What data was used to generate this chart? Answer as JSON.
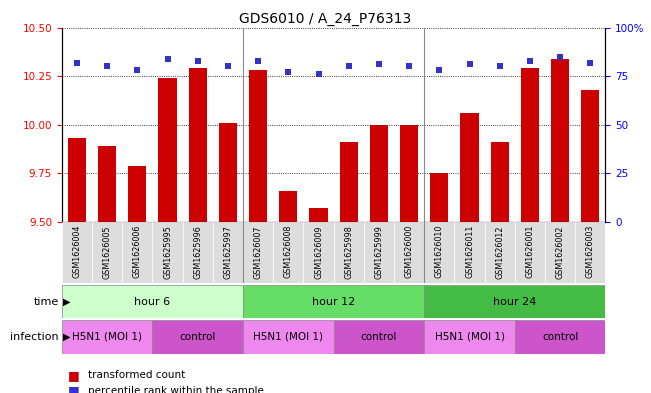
{
  "title": "GDS6010 / A_24_P76313",
  "samples": [
    "GSM1626004",
    "GSM1626005",
    "GSM1626006",
    "GSM1625995",
    "GSM1625996",
    "GSM1625997",
    "GSM1626007",
    "GSM1626008",
    "GSM1626009",
    "GSM1625998",
    "GSM1625999",
    "GSM1626000",
    "GSM1626010",
    "GSM1626011",
    "GSM1626012",
    "GSM1626001",
    "GSM1626002",
    "GSM1626003"
  ],
  "bar_values": [
    9.93,
    9.89,
    9.79,
    10.24,
    10.29,
    10.01,
    10.28,
    9.66,
    9.57,
    9.91,
    10.0,
    10.0,
    9.75,
    10.06,
    9.91,
    10.29,
    10.34,
    10.18
  ],
  "dot_values": [
    82,
    80,
    78,
    84,
    83,
    80,
    83,
    77,
    76,
    80,
    81,
    80,
    78,
    81,
    80,
    83,
    85,
    82
  ],
  "ylim_left": [
    9.5,
    10.5
  ],
  "ylim_right": [
    0,
    100
  ],
  "yticks_left": [
    9.5,
    9.75,
    10.0,
    10.25,
    10.5
  ],
  "yticks_right": [
    0,
    25,
    50,
    75,
    100
  ],
  "bar_color": "#cc0000",
  "dot_color": "#3333cc",
  "time_groups": [
    {
      "label": "hour 6",
      "start": 0,
      "end": 6,
      "color": "#ccffcc"
    },
    {
      "label": "hour 12",
      "start": 6,
      "end": 12,
      "color": "#66dd66"
    },
    {
      "label": "hour 24",
      "start": 12,
      "end": 18,
      "color": "#44bb44"
    }
  ],
  "infection_groups": [
    {
      "label": "H5N1 (MOI 1)",
      "start": 0,
      "end": 3,
      "color": "#ee88ee"
    },
    {
      "label": "control",
      "start": 3,
      "end": 6,
      "color": "#cc55cc"
    },
    {
      "label": "H5N1 (MOI 1)",
      "start": 6,
      "end": 9,
      "color": "#ee88ee"
    },
    {
      "label": "control",
      "start": 9,
      "end": 12,
      "color": "#cc55cc"
    },
    {
      "label": "H5N1 (MOI 1)",
      "start": 12,
      "end": 15,
      "color": "#ee88ee"
    },
    {
      "label": "control",
      "start": 15,
      "end": 18,
      "color": "#cc55cc"
    }
  ],
  "legend_items": [
    {
      "label": "transformed count",
      "color": "#cc0000",
      "marker": "s"
    },
    {
      "label": "percentile rank within the sample",
      "color": "#3333cc",
      "marker": "s"
    }
  ],
  "sample_label_bg": "#dddddd",
  "right_tick_labels": [
    "0",
    "25",
    "50",
    "75",
    "100%"
  ]
}
